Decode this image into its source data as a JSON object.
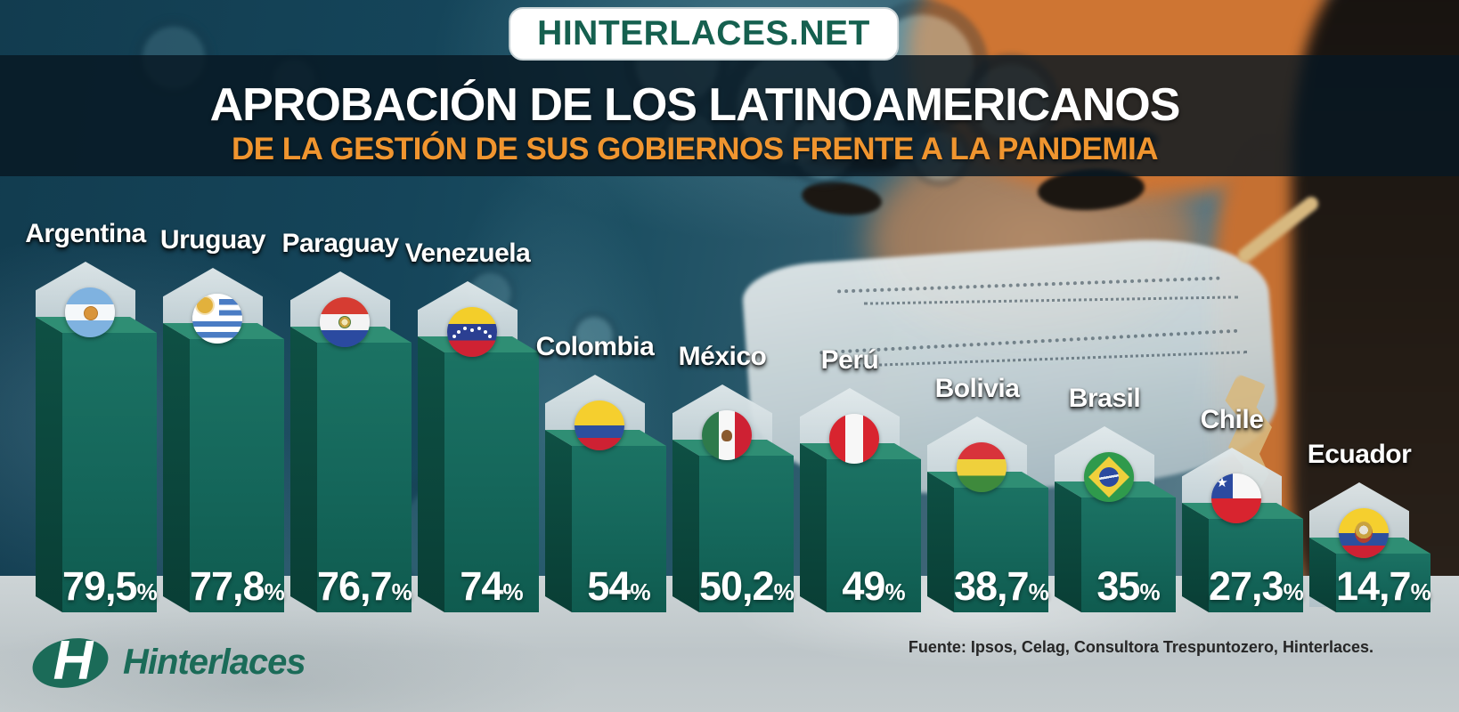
{
  "site_badge": "HINTERLACES.NET",
  "header": {
    "title": "APROBACIÓN DE LOS LATINOAMERICANOS",
    "subtitle": "DE LA GESTIÓN DE SUS GOBIERNOS FRENTE A LA PANDEMIA"
  },
  "footer": {
    "logo_text": "Hinterlaces",
    "logo_letter": "H",
    "source": "Fuente: Ipsos, Celag, Consultora Trespuntozero, Hinterlaces."
  },
  "colors": {
    "bar_front": "#15675B",
    "bar_top": "#2F8E74",
    "bar_side": "#0C463C",
    "accent_orange": "#F0952F",
    "brand_teal": "#1B6B58",
    "badge_shield": "#C9D6DA",
    "floor_gray": "#C6CDD0",
    "title_white": "#FFFFFF"
  },
  "chart_data": {
    "type": "bar",
    "orientation": "vertical-3d",
    "title": "APROBACIÓN DE LOS LATINOAMERICANOS",
    "subtitle": "DE LA GESTIÓN DE SUS GOBIERNOS FRENTE A LA PANDEMIA",
    "categories": [
      "Argentina",
      "Uruguay",
      "Paraguay",
      "Venezuela",
      "Colombia",
      "México",
      "Perú",
      "Bolivia",
      "Brasil",
      "Chile",
      "Ecuador"
    ],
    "values": [
      79.5,
      77.8,
      76.7,
      74,
      54,
      50.2,
      49,
      38.7,
      35,
      27.3,
      14.7
    ],
    "value_labels": [
      "79,5%",
      "77,8%",
      "76,7%",
      "74%",
      "54%",
      "50,2%",
      "49%",
      "38,7%",
      "35%",
      "27,3%",
      "14,7%"
    ],
    "unit": "%",
    "ylim": [
      0,
      100
    ],
    "grid": false,
    "legend": false,
    "source": "Fuente: Ipsos, Celag, Consultora Trespuntozero, Hinterlaces."
  },
  "countries": [
    {
      "name": "Argentina",
      "value": 79.5,
      "value_label": "79,5",
      "unit": "%",
      "flag": "argentina"
    },
    {
      "name": "Uruguay",
      "value": 77.8,
      "value_label": "77,8",
      "unit": "%",
      "flag": "uruguay"
    },
    {
      "name": "Paraguay",
      "value": 76.7,
      "value_label": "76,7",
      "unit": "%",
      "flag": "paraguay"
    },
    {
      "name": "Venezuela",
      "value": 74,
      "value_label": "74",
      "unit": "%",
      "flag": "venezuela"
    },
    {
      "name": "Colombia",
      "value": 54,
      "value_label": "54",
      "unit": "%",
      "flag": "colombia"
    },
    {
      "name": "México",
      "value": 50.2,
      "value_label": "50,2",
      "unit": "%",
      "flag": "mexico"
    },
    {
      "name": "Perú",
      "value": 49,
      "value_label": "49",
      "unit": "%",
      "flag": "peru"
    },
    {
      "name": "Bolivia",
      "value": 38.7,
      "value_label": "38,7",
      "unit": "%",
      "flag": "bolivia"
    },
    {
      "name": "Brasil",
      "value": 35,
      "value_label": "35",
      "unit": "%",
      "flag": "brasil"
    },
    {
      "name": "Chile",
      "value": 27.3,
      "value_label": "27,3",
      "unit": "%",
      "flag": "chile"
    },
    {
      "name": "Ecuador",
      "value": 14.7,
      "value_label": "14,7",
      "unit": "%",
      "flag": "ecuador"
    }
  ]
}
